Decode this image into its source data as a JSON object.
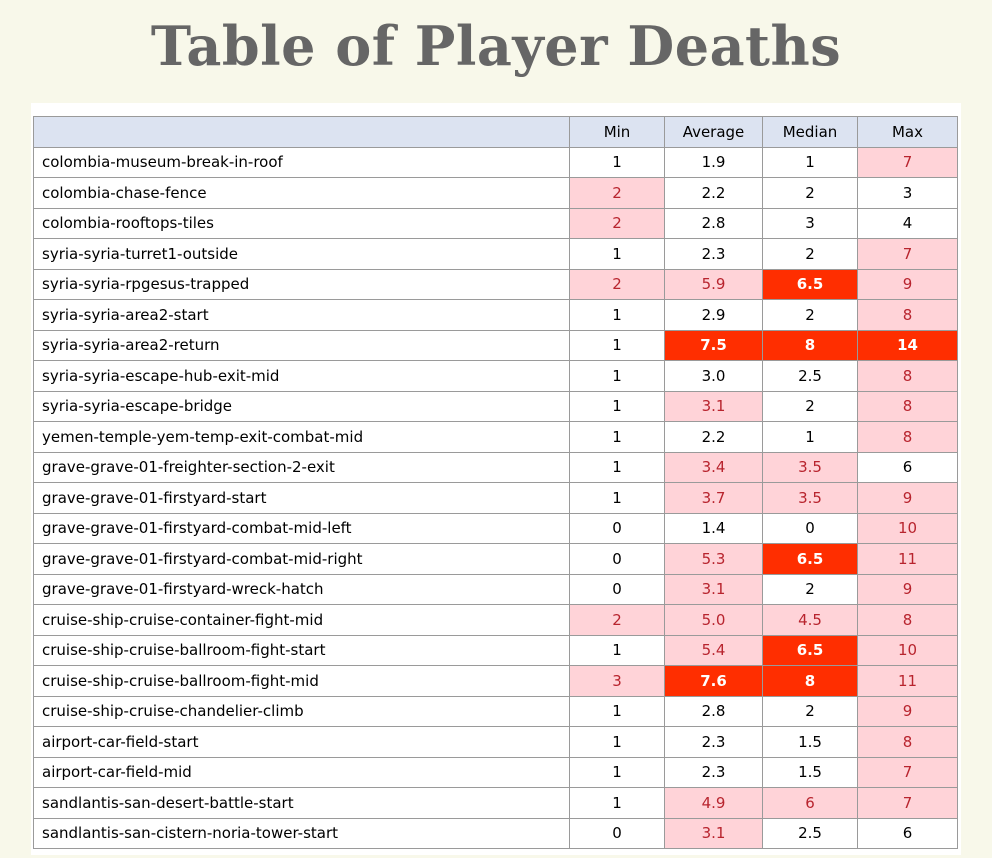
{
  "title": "Table of Player Deaths",
  "colors": {
    "background": "#f8f8ea",
    "header_fill": "#dce3f1",
    "highlight_light": "#ffd3d8",
    "highlight_light_text": "#b8242e",
    "highlight_strong": "#ff2e00"
  },
  "chart_data": {
    "type": "table",
    "title": "Table of Player Deaths",
    "columns": [
      "",
      "Min",
      "Average",
      "Median",
      "Max"
    ],
    "rows": [
      {
        "name": "colombia-museum-break-in-roof",
        "cells": [
          {
            "v": "1",
            "h": ""
          },
          {
            "v": "1.9",
            "h": ""
          },
          {
            "v": "1",
            "h": ""
          },
          {
            "v": "7",
            "h": "light"
          }
        ]
      },
      {
        "name": "colombia-chase-fence",
        "cells": [
          {
            "v": "2",
            "h": "light"
          },
          {
            "v": "2.2",
            "h": ""
          },
          {
            "v": "2",
            "h": ""
          },
          {
            "v": "3",
            "h": ""
          }
        ]
      },
      {
        "name": "colombia-rooftops-tiles",
        "cells": [
          {
            "v": "2",
            "h": "light"
          },
          {
            "v": "2.8",
            "h": ""
          },
          {
            "v": "3",
            "h": ""
          },
          {
            "v": "4",
            "h": ""
          }
        ]
      },
      {
        "name": "syria-syria-turret1-outside",
        "cells": [
          {
            "v": "1",
            "h": ""
          },
          {
            "v": "2.3",
            "h": ""
          },
          {
            "v": "2",
            "h": ""
          },
          {
            "v": "7",
            "h": "light"
          }
        ]
      },
      {
        "name": "syria-syria-rpgesus-trapped",
        "cells": [
          {
            "v": "2",
            "h": "light"
          },
          {
            "v": "5.9",
            "h": "light"
          },
          {
            "v": "6.5",
            "h": "strong"
          },
          {
            "v": "9",
            "h": "light"
          }
        ]
      },
      {
        "name": "syria-syria-area2-start",
        "cells": [
          {
            "v": "1",
            "h": ""
          },
          {
            "v": "2.9",
            "h": ""
          },
          {
            "v": "2",
            "h": ""
          },
          {
            "v": "8",
            "h": "light"
          }
        ]
      },
      {
        "name": "syria-syria-area2-return",
        "cells": [
          {
            "v": "1",
            "h": ""
          },
          {
            "v": "7.5",
            "h": "strong"
          },
          {
            "v": "8",
            "h": "strong"
          },
          {
            "v": "14",
            "h": "strong"
          }
        ]
      },
      {
        "name": "syria-syria-escape-hub-exit-mid",
        "cells": [
          {
            "v": "1",
            "h": ""
          },
          {
            "v": "3.0",
            "h": ""
          },
          {
            "v": "2.5",
            "h": ""
          },
          {
            "v": "8",
            "h": "light"
          }
        ]
      },
      {
        "name": "syria-syria-escape-bridge",
        "cells": [
          {
            "v": "1",
            "h": ""
          },
          {
            "v": "3.1",
            "h": "light"
          },
          {
            "v": "2",
            "h": ""
          },
          {
            "v": "8",
            "h": "light"
          }
        ]
      },
      {
        "name": "yemen-temple-yem-temp-exit-combat-mid",
        "cells": [
          {
            "v": "1",
            "h": ""
          },
          {
            "v": "2.2",
            "h": ""
          },
          {
            "v": "1",
            "h": ""
          },
          {
            "v": "8",
            "h": "light"
          }
        ]
      },
      {
        "name": "grave-grave-01-freighter-section-2-exit",
        "cells": [
          {
            "v": "1",
            "h": ""
          },
          {
            "v": "3.4",
            "h": "light"
          },
          {
            "v": "3.5",
            "h": "light"
          },
          {
            "v": "6",
            "h": ""
          }
        ]
      },
      {
        "name": "grave-grave-01-firstyard-start",
        "cells": [
          {
            "v": "1",
            "h": ""
          },
          {
            "v": "3.7",
            "h": "light"
          },
          {
            "v": "3.5",
            "h": "light"
          },
          {
            "v": "9",
            "h": "light"
          }
        ]
      },
      {
        "name": "grave-grave-01-firstyard-combat-mid-left",
        "cells": [
          {
            "v": "0",
            "h": ""
          },
          {
            "v": "1.4",
            "h": ""
          },
          {
            "v": "0",
            "h": ""
          },
          {
            "v": "10",
            "h": "light"
          }
        ]
      },
      {
        "name": "grave-grave-01-firstyard-combat-mid-right",
        "cells": [
          {
            "v": "0",
            "h": ""
          },
          {
            "v": "5.3",
            "h": "light"
          },
          {
            "v": "6.5",
            "h": "strong"
          },
          {
            "v": "11",
            "h": "light"
          }
        ]
      },
      {
        "name": "grave-grave-01-firstyard-wreck-hatch",
        "cells": [
          {
            "v": "0",
            "h": ""
          },
          {
            "v": "3.1",
            "h": "light"
          },
          {
            "v": "2",
            "h": ""
          },
          {
            "v": "9",
            "h": "light"
          }
        ]
      },
      {
        "name": "cruise-ship-cruise-container-fight-mid",
        "cells": [
          {
            "v": "2",
            "h": "light"
          },
          {
            "v": "5.0",
            "h": "light"
          },
          {
            "v": "4.5",
            "h": "light"
          },
          {
            "v": "8",
            "h": "light"
          }
        ]
      },
      {
        "name": "cruise-ship-cruise-ballroom-fight-start",
        "cells": [
          {
            "v": "1",
            "h": ""
          },
          {
            "v": "5.4",
            "h": "light"
          },
          {
            "v": "6.5",
            "h": "strong"
          },
          {
            "v": "10",
            "h": "light"
          }
        ]
      },
      {
        "name": "cruise-ship-cruise-ballroom-fight-mid",
        "cells": [
          {
            "v": "3",
            "h": "light"
          },
          {
            "v": "7.6",
            "h": "strong"
          },
          {
            "v": "8",
            "h": "strong"
          },
          {
            "v": "11",
            "h": "light"
          }
        ]
      },
      {
        "name": "cruise-ship-cruise-chandelier-climb",
        "cells": [
          {
            "v": "1",
            "h": ""
          },
          {
            "v": "2.8",
            "h": ""
          },
          {
            "v": "2",
            "h": ""
          },
          {
            "v": "9",
            "h": "light"
          }
        ]
      },
      {
        "name": "airport-car-field-start",
        "cells": [
          {
            "v": "1",
            "h": ""
          },
          {
            "v": "2.3",
            "h": ""
          },
          {
            "v": "1.5",
            "h": ""
          },
          {
            "v": "8",
            "h": "light"
          }
        ]
      },
      {
        "name": "airport-car-field-mid",
        "cells": [
          {
            "v": "1",
            "h": ""
          },
          {
            "v": "2.3",
            "h": ""
          },
          {
            "v": "1.5",
            "h": ""
          },
          {
            "v": "7",
            "h": "light"
          }
        ]
      },
      {
        "name": "sandlantis-san-desert-battle-start",
        "cells": [
          {
            "v": "1",
            "h": ""
          },
          {
            "v": "4.9",
            "h": "light"
          },
          {
            "v": "6",
            "h": "light"
          },
          {
            "v": "7",
            "h": "light"
          }
        ]
      },
      {
        "name": "sandlantis-san-cistern-noria-tower-start",
        "cells": [
          {
            "v": "0",
            "h": ""
          },
          {
            "v": "3.1",
            "h": "light"
          },
          {
            "v": "2.5",
            "h": ""
          },
          {
            "v": "6",
            "h": ""
          }
        ]
      }
    ]
  }
}
